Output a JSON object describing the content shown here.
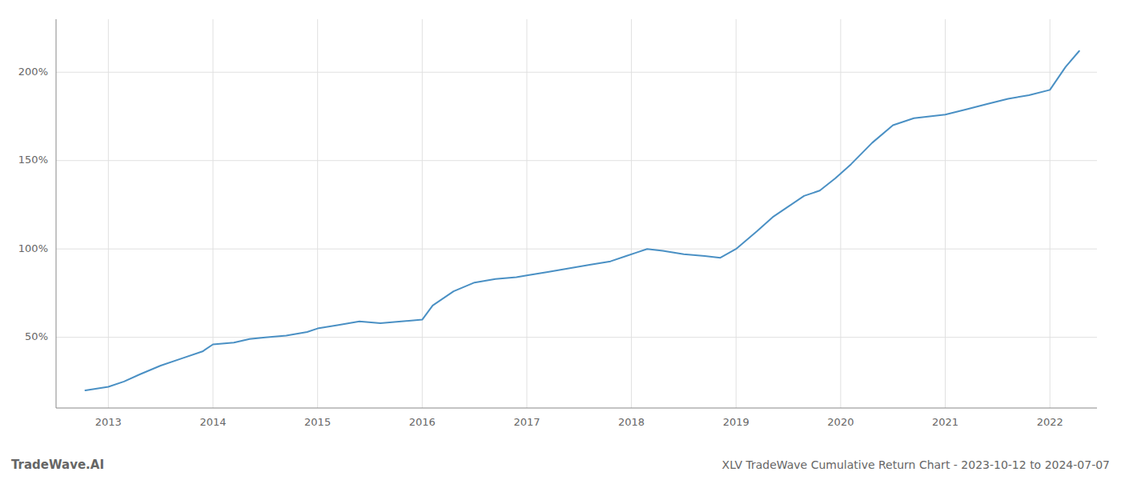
{
  "chart_data": {
    "type": "line",
    "title": "XLV TradeWave Cumulative Return Chart - 2023-10-12 to 2024-07-07",
    "annotations": [
      "TradeWave.AI"
    ],
    "color": "#4a90c4",
    "grid": true,
    "x": [
      2012.78,
      2013.0,
      2013.15,
      2013.3,
      2013.5,
      2013.7,
      2013.9,
      2014.0,
      2014.2,
      2014.35,
      2014.5,
      2014.7,
      2014.9,
      2015.0,
      2015.2,
      2015.4,
      2015.6,
      2015.8,
      2016.0,
      2016.1,
      2016.3,
      2016.5,
      2016.7,
      2016.9,
      2017.0,
      2017.2,
      2017.4,
      2017.6,
      2017.8,
      2017.95,
      2018.05,
      2018.15,
      2018.3,
      2018.5,
      2018.7,
      2018.85,
      2019.0,
      2019.2,
      2019.35,
      2019.5,
      2019.65,
      2019.8,
      2019.95,
      2020.1,
      2020.3,
      2020.5,
      2020.7,
      2020.85,
      2021.0,
      2021.2,
      2021.4,
      2021.6,
      2021.8,
      2022.0,
      2022.15,
      2022.28
    ],
    "values": [
      20,
      22,
      25,
      29,
      34,
      38,
      42,
      46,
      47,
      49,
      50,
      51,
      53,
      55,
      57,
      59,
      58,
      59,
      60,
      68,
      76,
      81,
      83,
      84,
      85,
      87,
      89,
      91,
      93,
      96,
      98,
      100,
      99,
      97,
      96,
      95,
      100,
      110,
      118,
      124,
      130,
      133,
      140,
      148,
      160,
      170,
      174,
      175,
      176,
      179,
      182,
      185,
      187,
      190,
      203,
      212
    ],
    "xlim": [
      2012.5,
      2022.45
    ],
    "ylim": [
      10,
      230
    ],
    "xticks": [
      2013,
      2014,
      2015,
      2016,
      2017,
      2018,
      2019,
      2020,
      2021,
      2022
    ],
    "yticks": [
      {
        "value": 50,
        "label": "50%"
      },
      {
        "value": 100,
        "label": "100%"
      },
      {
        "value": 150,
        "label": "150%"
      },
      {
        "value": 200,
        "label": "200%"
      }
    ]
  }
}
